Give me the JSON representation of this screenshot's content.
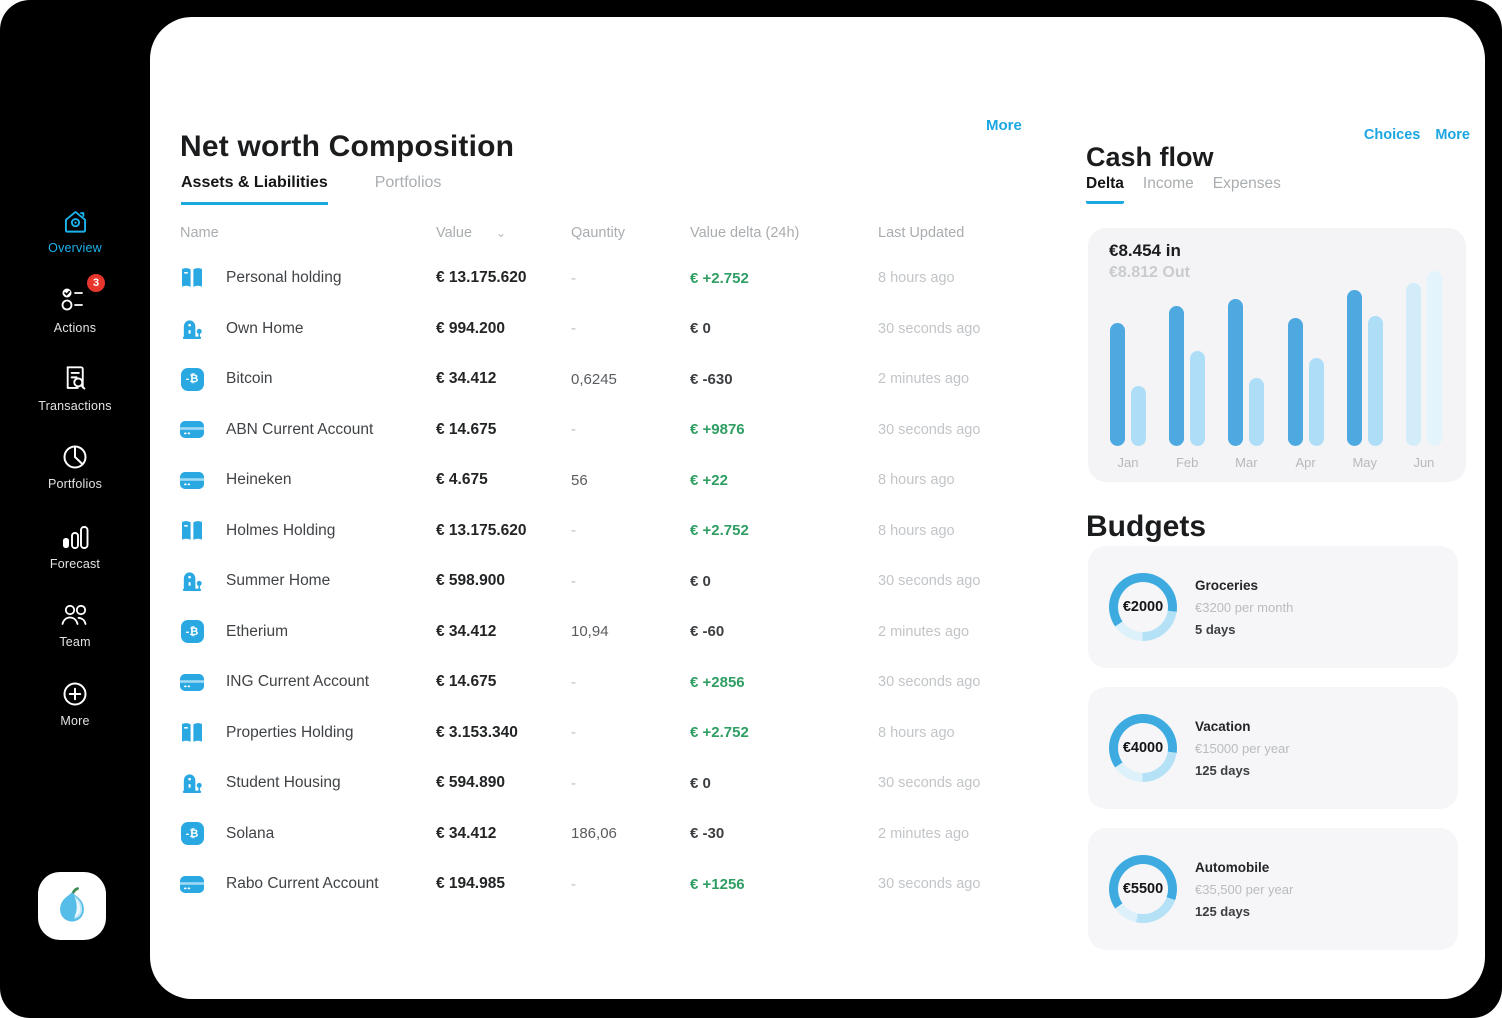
{
  "colors": {
    "accent_blue": "#1ca9e0",
    "positive_green": "#2f9e63",
    "badge_red": "#e8362d",
    "bar_in": "#4fa9e1",
    "bar_out": "#aeddf8",
    "bar_in_faded": "#d3ecfa",
    "bar_out_faded": "#e4f4fc"
  },
  "sidebar": {
    "items": [
      {
        "label": "Overview",
        "icon": "home-icon",
        "active": true
      },
      {
        "label": "Actions",
        "icon": "checklist-icon",
        "badge": "3"
      },
      {
        "label": "Transactions",
        "icon": "document-search-icon"
      },
      {
        "label": "Portfolios",
        "icon": "pie-chart-icon"
      },
      {
        "label": "Forecast",
        "icon": "bar-chart-icon"
      },
      {
        "label": "Team",
        "icon": "people-icon"
      },
      {
        "label": "More",
        "icon": "plus-circle-icon"
      }
    ]
  },
  "networth": {
    "title": "Net worth Composition",
    "more_label": "More",
    "tabs": [
      {
        "label": "Assets & Liabilities",
        "active": true
      },
      {
        "label": "Portfolios",
        "active": false
      }
    ],
    "columns": [
      "Name",
      "Value",
      "Qauntity",
      "Value delta (24h)",
      "Last Updated"
    ],
    "sort_chevron": "⌄",
    "rows": [
      {
        "icon": "holding",
        "name": "Personal holding",
        "value": "€ 13.175.620",
        "quantity": "-",
        "delta": "€ +2.752",
        "delta_positive": true,
        "updated": "8 hours ago"
      },
      {
        "icon": "home",
        "name": "Own Home",
        "value": "€ 994.200",
        "quantity": "-",
        "delta": "€ 0",
        "delta_positive": false,
        "updated": "30 seconds ago"
      },
      {
        "icon": "crypto",
        "name": "Bitcoin",
        "value": "€ 34.412",
        "quantity": "0,6245",
        "delta": "€ -630",
        "delta_positive": false,
        "updated": "2 minutes ago"
      },
      {
        "icon": "card",
        "name": "ABN Current Account",
        "value": "€ 14.675",
        "quantity": "-",
        "delta": "€ +9876",
        "delta_positive": true,
        "updated": "30 seconds ago"
      },
      {
        "icon": "card",
        "name": "Heineken",
        "value": "€ 4.675",
        "quantity": "56",
        "delta": "€ +22",
        "delta_positive": true,
        "updated": "8 hours ago"
      },
      {
        "icon": "holding",
        "name": "Holmes Holding",
        "value": "€ 13.175.620",
        "quantity": "-",
        "delta": "€ +2.752",
        "delta_positive": true,
        "updated": "8 hours ago"
      },
      {
        "icon": "home",
        "name": "Summer Home",
        "value": "€ 598.900",
        "quantity": "-",
        "delta": "€ 0",
        "delta_positive": false,
        "updated": "30 seconds ago"
      },
      {
        "icon": "crypto",
        "name": "Etherium",
        "value": "€ 34.412",
        "quantity": "10,94",
        "delta": "€ -60",
        "delta_positive": false,
        "updated": "2 minutes ago"
      },
      {
        "icon": "card",
        "name": "ING Current Account",
        "value": "€ 14.675",
        "quantity": "-",
        "delta": "€ +2856",
        "delta_positive": true,
        "updated": "30 seconds ago"
      },
      {
        "icon": "holding",
        "name": "Properties Holding",
        "value": "€ 3.153.340",
        "quantity": "-",
        "delta": "€ +2.752",
        "delta_positive": true,
        "updated": "8 hours ago"
      },
      {
        "icon": "home",
        "name": "Student Housing",
        "value": "€ 594.890",
        "quantity": "-",
        "delta": "€ 0",
        "delta_positive": false,
        "updated": "30 seconds ago"
      },
      {
        "icon": "crypto",
        "name": "Solana",
        "value": "€ 34.412",
        "quantity": "186,06",
        "delta": "€ -30",
        "delta_positive": false,
        "updated": "2 minutes ago"
      },
      {
        "icon": "card",
        "name": "Rabo Current Account",
        "value": "€ 194.985",
        "quantity": "-",
        "delta": "€ +1256",
        "delta_positive": true,
        "updated": "30 seconds ago"
      }
    ]
  },
  "cashflow": {
    "title": "Cash flow",
    "links": [
      "Choices",
      "More"
    ],
    "tabs": [
      {
        "label": "Delta",
        "active": true
      },
      {
        "label": "Income",
        "active": false
      },
      {
        "label": "Expenses",
        "active": false
      }
    ],
    "in_label": "€8.454 in",
    "out_label": "€8.812 Out"
  },
  "chart_data": {
    "type": "bar",
    "title": "€8.454 in",
    "subtitle": "€8.812 Out",
    "categories": [
      "Jan",
      "Feb",
      "Mar",
      "Apr",
      "May",
      "Jun"
    ],
    "series": [
      {
        "name": "in",
        "values": [
          70,
          80,
          84,
          73,
          89,
          93
        ]
      },
      {
        "name": "out",
        "values": [
          34,
          54,
          39,
          50,
          74,
          100
        ]
      }
    ],
    "units": "relative (0-100 of tallest bar)",
    "faded_categories": [
      "Jun"
    ],
    "ylim": [
      0,
      100
    ],
    "legend": false,
    "grid": false
  },
  "budgets": {
    "title": "Budgets",
    "items": [
      {
        "amount": "€2000",
        "name": "Groceries",
        "rate": "€3200 per month",
        "days": "5 days",
        "progress": 0.62
      },
      {
        "amount": "€4000",
        "name": "Vacation",
        "rate": "€15000 per year",
        "days": "125 days",
        "progress": 0.62
      },
      {
        "amount": "€5500",
        "name": "Automobile",
        "rate": "€35,500 per year",
        "days": "125 days",
        "progress": 0.65
      }
    ]
  }
}
